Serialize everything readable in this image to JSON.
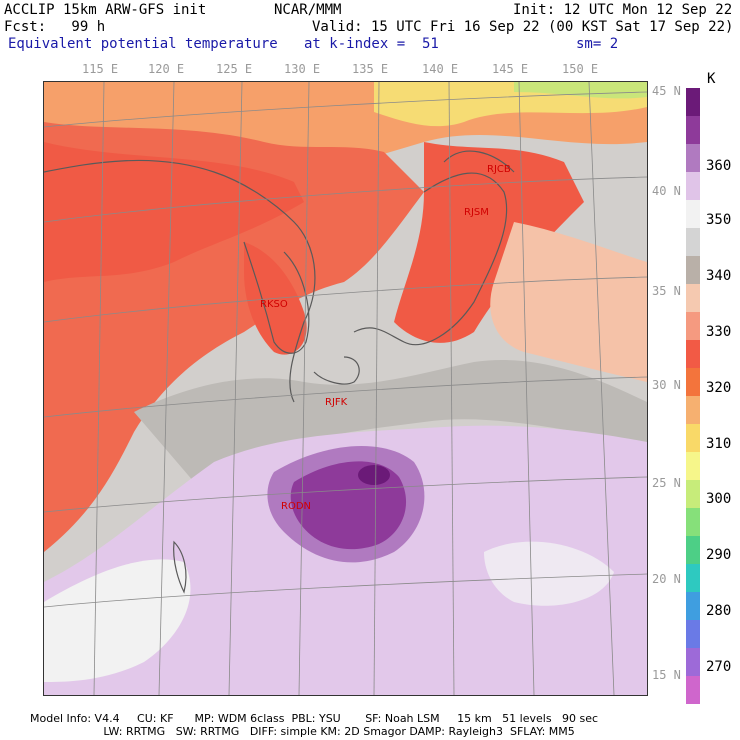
{
  "header": {
    "line1_left": "ACCLIP 15km ARW-GFS init",
    "line1_mid": "NCAR/MMM",
    "line1_right": "Init: 12 UTC Mon 12 Sep 22",
    "line2_left": "Fcst:   99 h",
    "line2_right": "Valid: 15 UTC Fri 16 Sep 22 (00 KST Sat 17 Sep 22)",
    "line3_left": "Equivalent potential temperature",
    "line3_mid": "at k-index =  51",
    "line3_right": "sm= 2"
  },
  "longitude_labels": [
    "115 E",
    "120 E",
    "125 E",
    "130 E",
    "135 E",
    "140 E",
    "145 E",
    "150 E"
  ],
  "latitude_labels": [
    "45 N",
    "40 N",
    "35 N",
    "30 N",
    "25 N",
    "20 N",
    "15 N"
  ],
  "colorbar": {
    "unit": "K",
    "labels": [
      "360",
      "350",
      "340",
      "330",
      "320",
      "310",
      "300",
      "290",
      "280",
      "270"
    ],
    "colors_top_to_bottom": [
      "#6b1a78",
      "#8e3a9a",
      "#b07ac0",
      "#e0c4e8",
      "#f2f2f2",
      "#d4d4d4",
      "#b9b0a8",
      "#f5c9b0",
      "#f59a80",
      "#f25a45",
      "#f3743c",
      "#f6b070",
      "#f9d968",
      "#f6f68a",
      "#c7ec7a",
      "#86e07a",
      "#4dcf86",
      "#2ec9c0",
      "#3f9ee0",
      "#6a7ae6",
      "#9d6ad8",
      "#cf66cc"
    ]
  },
  "stations": [
    {
      "id": "RJCB"
    },
    {
      "id": "RJSM"
    },
    {
      "id": "RKSO"
    },
    {
      "id": "RJFK"
    },
    {
      "id": "RODN"
    }
  ],
  "footer": {
    "line1": "Model Info: V4.4     CU: KF      MP: WDM 6class  PBL: YSU       SF: Noah LSM     15 km   51 levels   90 sec",
    "line2": "                     LW: RRTMG   SW: RRTMG   DIFF: simple KM: 2D Smagor DAMP: Rayleigh3  SFLAY: MM5"
  }
}
